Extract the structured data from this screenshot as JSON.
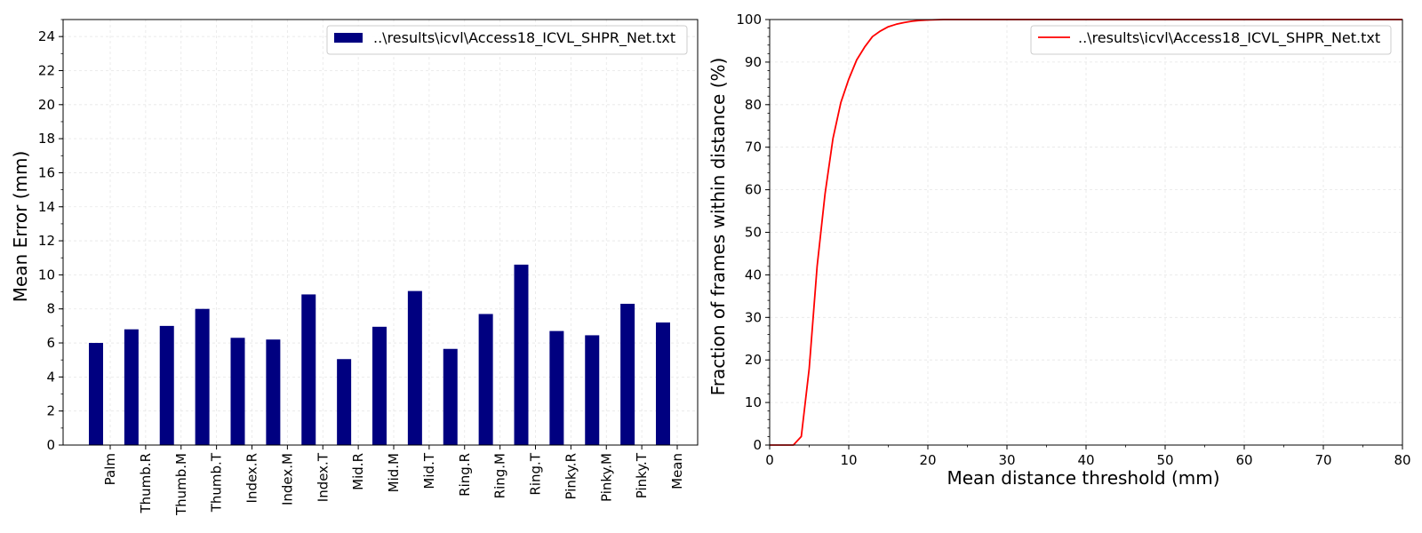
{
  "chart_data": [
    {
      "type": "bar",
      "ylabel": "Mean Error (mm)",
      "xlabel": "",
      "ylim": [
        0,
        25
      ],
      "yticks": [
        0,
        2,
        4,
        6,
        8,
        10,
        12,
        14,
        16,
        18,
        20,
        22,
        24
      ],
      "grid": true,
      "legend_position": "top-right",
      "color": "#000080",
      "categories": [
        "Palm",
        "Thumb.R",
        "Thumb.M",
        "Thumb.T",
        "Index.R",
        "Index.M",
        "Index.T",
        "Mid.R",
        "Mid.M",
        "Mid.T",
        "Ring.R",
        "Ring.M",
        "Ring.T",
        "Pinky.R",
        "Pinky.M",
        "Pinky.T",
        "Mean"
      ],
      "series": [
        {
          "name": "..\\results\\icvl\\Access18_ICVL_SHPR_Net.txt",
          "values": [
            6.0,
            6.8,
            7.0,
            8.0,
            6.3,
            6.2,
            8.85,
            5.05,
            6.95,
            9.05,
            5.65,
            7.7,
            10.6,
            6.7,
            6.45,
            8.3,
            7.2
          ]
        }
      ]
    },
    {
      "type": "line",
      "xlabel": "Mean distance threshold (mm)",
      "ylabel": "Fraction of frames within distance (%)",
      "xlim": [
        0,
        80
      ],
      "ylim": [
        0,
        100
      ],
      "xticks": [
        0,
        10,
        20,
        30,
        40,
        50,
        60,
        70,
        80
      ],
      "yticks": [
        0,
        10,
        20,
        30,
        40,
        50,
        60,
        70,
        80,
        90,
        100
      ],
      "grid": true,
      "legend_position": "top-right",
      "series": [
        {
          "name": "..\\results\\icvl\\Access18_ICVL_SHPR_Net.txt",
          "color": "#ff0000",
          "x": [
            0,
            1,
            2,
            3,
            4,
            5,
            6,
            7,
            8,
            9,
            10,
            11,
            12,
            13,
            14,
            15,
            16,
            17,
            18,
            19,
            20,
            22,
            25,
            30,
            80
          ],
          "y": [
            0,
            0,
            0,
            0,
            2,
            18,
            42,
            59,
            72,
            80.5,
            86,
            90.5,
            93.5,
            96,
            97.3,
            98.3,
            98.9,
            99.3,
            99.6,
            99.8,
            99.9,
            100,
            100,
            100,
            100
          ]
        }
      ]
    }
  ]
}
